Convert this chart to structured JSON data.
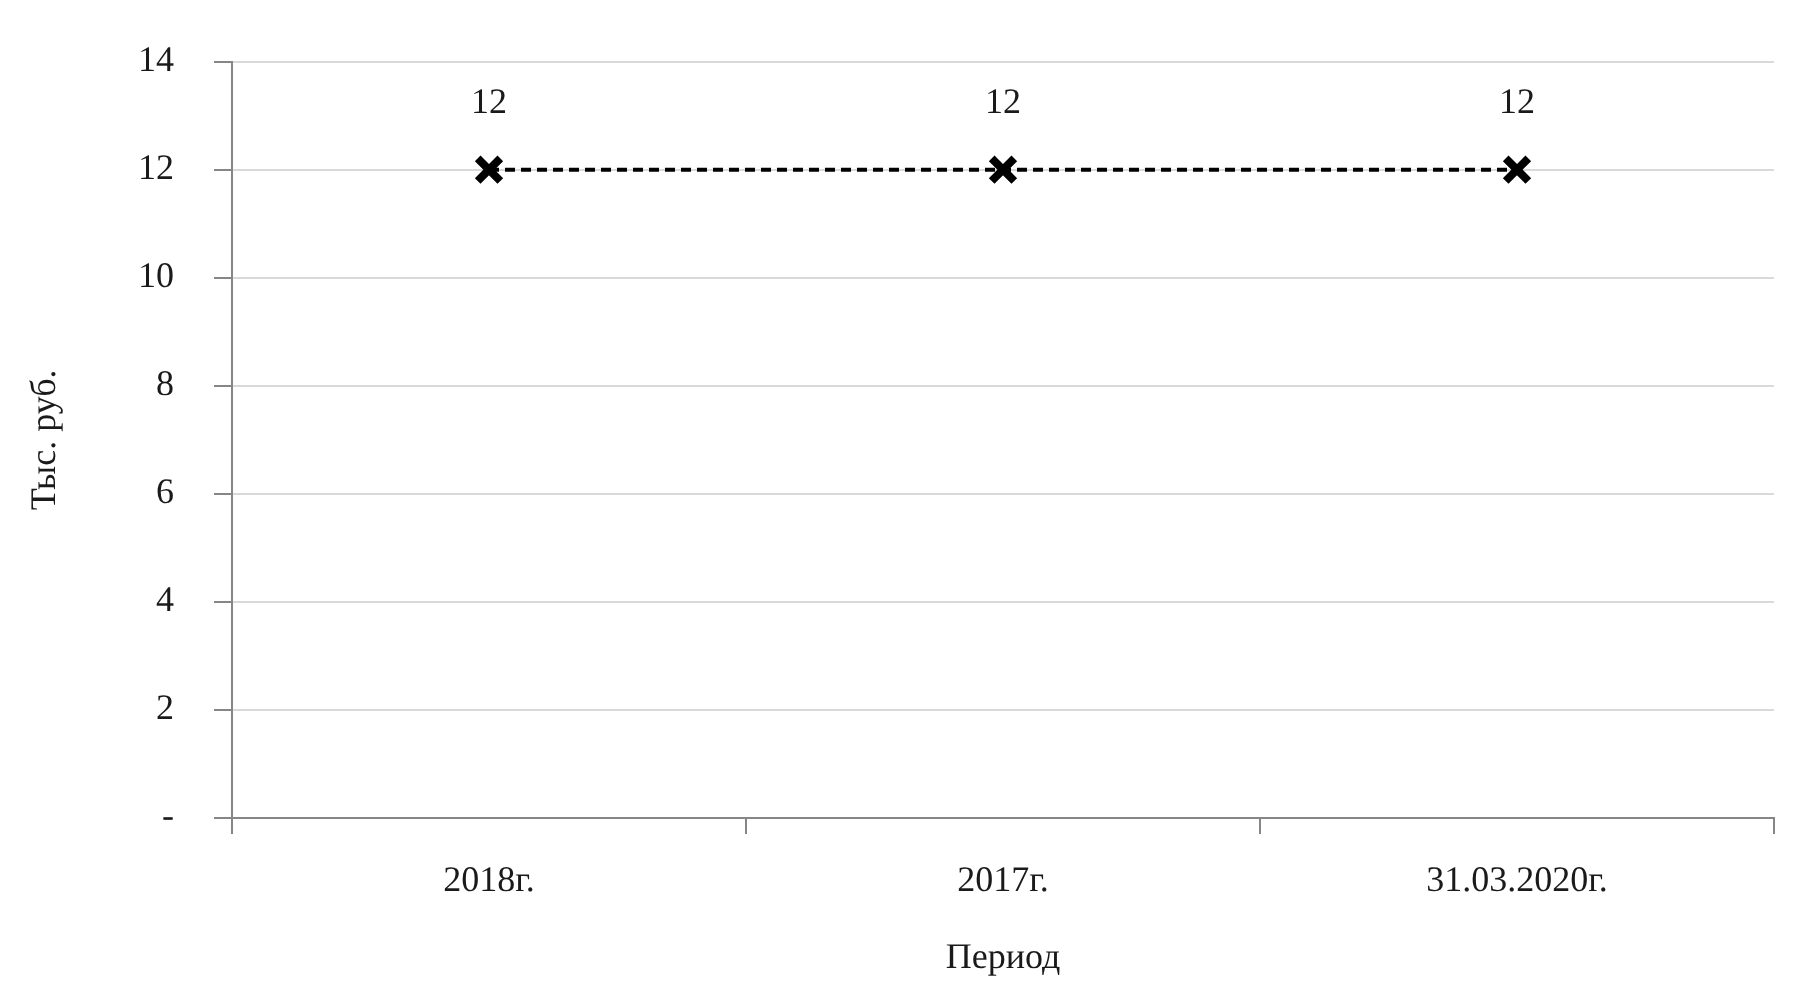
{
  "chart_data": {
    "type": "line",
    "xlabel": "Период",
    "ylabel": "Тыс. руб.",
    "categories": [
      "2018г.",
      "2017г.",
      "31.03.2020г."
    ],
    "series": [
      {
        "color": "#000000",
        "values": [
          12,
          12,
          12
        ]
      }
    ],
    "ylim": [
      0,
      14
    ],
    "yticks": [
      {
        "value": 0,
        "label": "-"
      },
      2,
      4,
      6,
      8,
      10,
      12,
      14
    ],
    "grid": "y",
    "marker": "cross",
    "line_style": "dashed",
    "data_labels": true
  }
}
